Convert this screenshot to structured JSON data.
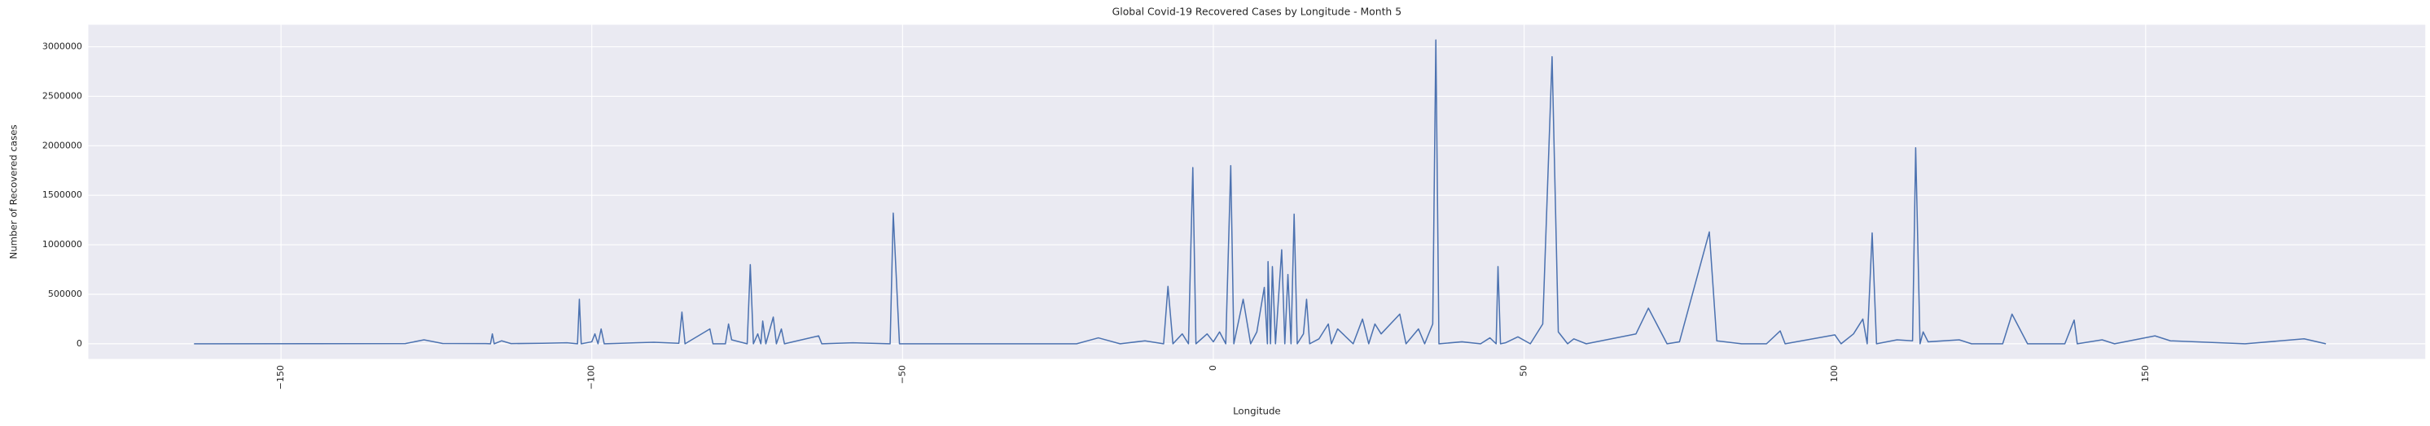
{
  "chart_data": {
    "type": "line",
    "title": "Global Covid-19 Recovered Cases by Longitude - Month 5",
    "xlabel": "Longitude",
    "ylabel": "Number of Recovered cases",
    "color": "#4c72b0",
    "grid": true,
    "xlim": [
      -181,
      195
    ],
    "xticks": [
      {
        "value": -150,
        "label": "−150"
      },
      {
        "value": -100,
        "label": "−100"
      },
      {
        "value": -50,
        "label": "−50"
      },
      0,
      50,
      100,
      150
    ],
    "ylim": [
      -153000,
      3223000
    ],
    "yticks": [
      0,
      500000,
      1000000,
      1500000,
      2000000,
      2500000,
      3000000
    ],
    "x": [
      -164,
      -130,
      -127,
      -124,
      -117,
      -116.3,
      -116,
      -115.7,
      -114.5,
      -113,
      -108,
      -104,
      -102.3,
      -102,
      -101.7,
      -100,
      -99.5,
      -99,
      -98.5,
      -98,
      -93,
      -90,
      -86,
      -85.5,
      -85,
      -81,
      -80.5,
      -78.5,
      -78,
      -77.5,
      -75,
      -74.5,
      -74,
      -73.3,
      -72.8,
      -72.5,
      -72,
      -70.8,
      -70.3,
      -69.5,
      -69,
      -63.5,
      -63,
      -58,
      -52,
      -51.5,
      -50.5,
      -30,
      -22,
      -18.5,
      -15,
      -11,
      -8,
      -7.3,
      -6.5,
      -5,
      -4,
      -3.3,
      -2.8,
      -1,
      0,
      1,
      2,
      2.8,
      3.3,
      4.8,
      6,
      7,
      8.2,
      8.7,
      8.8,
      9.2,
      9.5,
      10,
      11,
      11.5,
      12,
      12.5,
      13,
      13.5,
      14.5,
      15,
      15.5,
      17,
      18.5,
      19,
      20,
      22.5,
      24,
      25,
      26,
      27,
      30,
      31,
      33,
      34,
      35.3,
      35.8,
      36.3,
      40,
      43,
      44.5,
      45.5,
      45.8,
      46.2,
      47,
      49,
      51,
      53,
      54.5,
      55.5,
      57,
      58,
      60,
      68,
      70,
      73,
      75,
      79.8,
      81,
      85,
      89,
      91.2,
      92,
      100,
      101,
      103,
      104.5,
      105.2,
      106,
      106.7,
      110,
      112.5,
      113,
      113.7,
      114.2,
      115,
      120,
      122,
      127,
      128.5,
      131,
      137,
      138.5,
      139,
      143,
      145,
      151.5,
      154,
      166,
      175.5,
      179
    ],
    "values": [
      0,
      2000,
      40000,
      3000,
      2000,
      0,
      100000,
      0,
      30000,
      2000,
      5000,
      10000,
      0,
      450000,
      0,
      20000,
      100000,
      0,
      150000,
      0,
      10000,
      15000,
      5000,
      320000,
      0,
      150000,
      0,
      0,
      200000,
      40000,
      0,
      800000,
      0,
      100000,
      0,
      230000,
      0,
      270000,
      0,
      150000,
      0,
      80000,
      0,
      10000,
      0,
      1320000,
      0,
      0,
      0,
      60000,
      0,
      30000,
      0,
      580000,
      0,
      100000,
      0,
      1780000,
      0,
      100000,
      20000,
      120000,
      0,
      1800000,
      0,
      450000,
      0,
      120000,
      570000,
      0,
      830000,
      0,
      780000,
      0,
      950000,
      0,
      700000,
      0,
      1310000,
      0,
      100000,
      450000,
      0,
      50000,
      200000,
      0,
      150000,
      0,
      250000,
      0,
      200000,
      100000,
      300000,
      0,
      150000,
      0,
      200000,
      3070000,
      0,
      20000,
      0,
      60000,
      0,
      780000,
      0,
      10000,
      70000,
      0,
      200000,
      2900000,
      120000,
      0,
      50000,
      0,
      100000,
      360000,
      0,
      20000,
      1130000,
      30000,
      0,
      0,
      130000,
      0,
      90000,
      0,
      100000,
      250000,
      0,
      1120000,
      0,
      40000,
      30000,
      1980000,
      0,
      120000,
      20000,
      40000,
      0,
      0,
      300000,
      0,
      0,
      240000,
      0,
      40000,
      0,
      80000,
      30000,
      0,
      50000,
      0
    ]
  }
}
